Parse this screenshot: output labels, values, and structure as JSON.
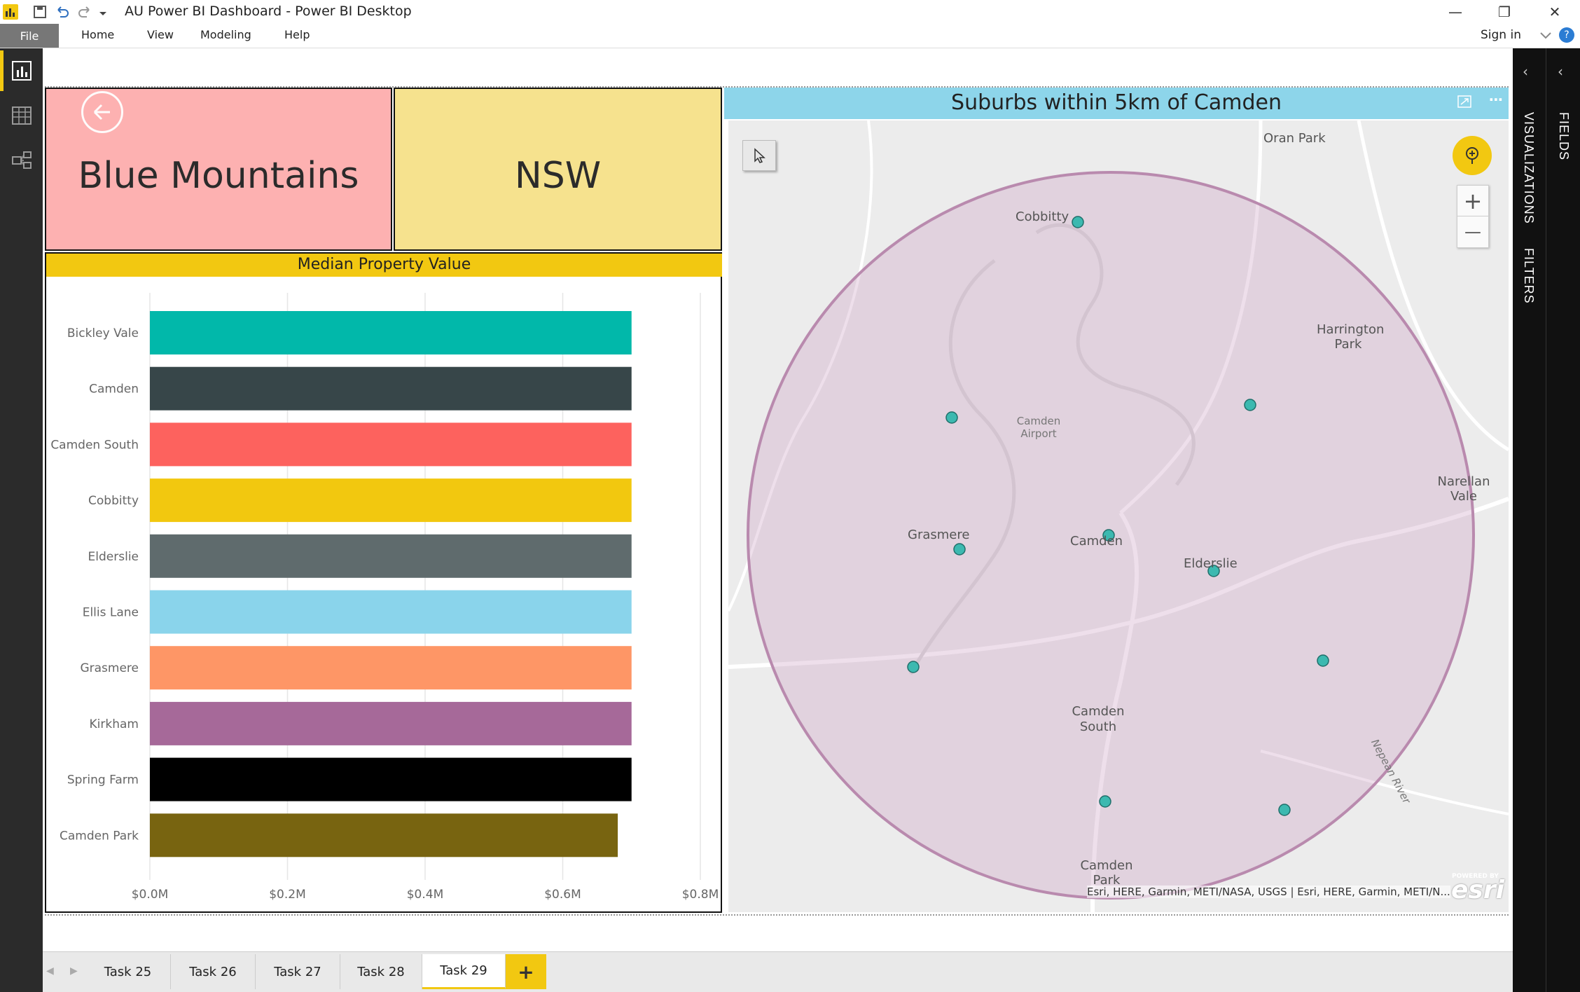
{
  "window": {
    "title": "AU Power BI Dashboard - Power BI Desktop",
    "minimize": "—",
    "restore": "❐",
    "close": "✕"
  },
  "menu": {
    "file": "File",
    "items": [
      "Home",
      "View",
      "Modeling",
      "Help"
    ],
    "sign_in": "Sign in",
    "help_icon": "?"
  },
  "right_pane": {
    "fields": "FIELDS",
    "visualizations": "VISUALIZATIONS",
    "filters": "FILTERS"
  },
  "cards": {
    "region": "Blue Mountains",
    "state": "NSW",
    "colors": {
      "region_bg": "#fdb1b1",
      "state_bg": "#f6e28e"
    }
  },
  "chart_data": {
    "type": "bar",
    "orientation": "horizontal",
    "title": "Median Property Value",
    "categories": [
      "Bickley Vale",
      "Camden",
      "Camden South",
      "Cobbitty",
      "Elderslie",
      "Ellis Lane",
      "Grasmere",
      "Kirkham",
      "Spring Farm",
      "Camden Park"
    ],
    "values": [
      700000,
      700000,
      700000,
      700000,
      700000,
      700000,
      700000,
      700000,
      700000,
      680000
    ],
    "colors": [
      "#01b8aa",
      "#374649",
      "#fd625e",
      "#f2c80f",
      "#5f6b6d",
      "#8ad4eb",
      "#fe9666",
      "#a66999",
      "#000000",
      "#786410"
    ],
    "xlim": [
      0,
      800000
    ],
    "xticks": [
      "$0.0M",
      "$0.2M",
      "$0.4M",
      "$0.6M",
      "$0.8M"
    ],
    "grid": true
  },
  "map": {
    "title": "Suburbs within 5km of Camden",
    "labels": {
      "oran_park": "Oran Park",
      "cobbitty": "Cobbitty",
      "harrington": "Harrington Park",
      "airport": "Camden Airport",
      "narellan": "Narellan Vale",
      "grasmere": "Grasmere",
      "camden": "Camden",
      "elderslie": "Elderslie",
      "camden_south": "Camden South",
      "camden_park": "Camden Park",
      "nepean": "Nepean River"
    },
    "attribution": "Esri, HERE, Garmin, METI/NASA, USGS | Esri, HERE, Garmin, METI/N...",
    "esri_powered": "POWERED BY",
    "esri_logo": "esri",
    "zoom_in": "+",
    "zoom_out": "—",
    "circle_color": "#b98aae",
    "marker_color": "#3cb9b0"
  },
  "tabs": [
    "Task 25",
    "Task 26",
    "Task 27",
    "Task 28",
    "Task 29"
  ],
  "active_tab": "Task 29",
  "add_tab": "+"
}
